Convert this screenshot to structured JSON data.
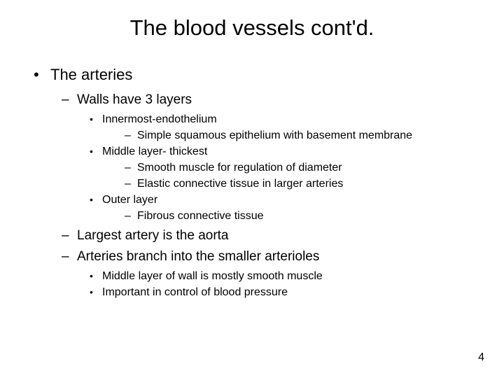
{
  "slide": {
    "title": "The blood vessels cont'd.",
    "page_number": "4",
    "background_color": "#ffffff",
    "text_color": "#000000",
    "title_fontsize": 31,
    "bullets": {
      "level0": [
        {
          "text": "The arteries",
          "level1": [
            {
              "text": "Walls have 3 layers",
              "level2": [
                {
                  "text": "Innermost-endothelium",
                  "level3": [
                    {
                      "text": "Simple squamous epithelium with basement membrane"
                    }
                  ]
                },
                {
                  "text": "Middle layer- thickest",
                  "level3": [
                    {
                      "text": "Smooth muscle for regulation of diameter"
                    },
                    {
                      "text": "Elastic connective tissue in larger arteries"
                    }
                  ]
                },
                {
                  "text": "Outer layer",
                  "level3": [
                    {
                      "text": "Fibrous connective tissue"
                    }
                  ]
                }
              ]
            },
            {
              "text": "Largest artery is the aorta"
            },
            {
              "text": "Arteries branch into the smaller arterioles",
              "level2": [
                {
                  "text": "Middle layer of wall is mostly smooth muscle"
                },
                {
                  "text": "Important in control of blood pressure"
                }
              ]
            }
          ]
        }
      ]
    }
  }
}
